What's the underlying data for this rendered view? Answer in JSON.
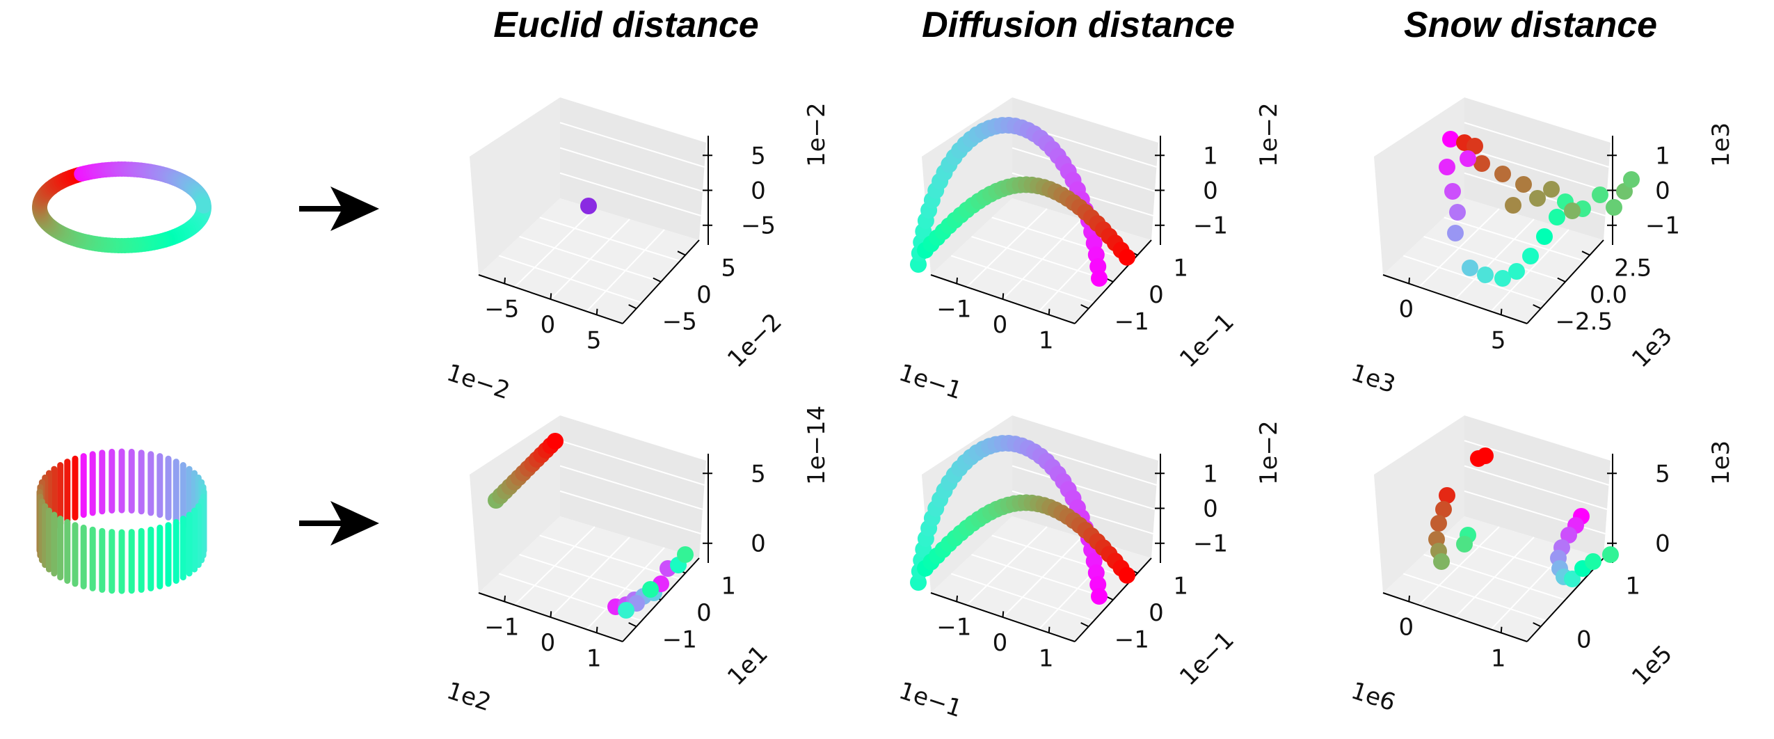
{
  "titles": [
    "Euclid distance",
    "Diffusion distance",
    "Snow distance"
  ],
  "colors": {
    "pane_top": "#f0f0f0",
    "pane_right": "#e8e8e8",
    "pane_left": "#ebebeb",
    "axis": "#000000",
    "grid": "#ffffff",
    "arrow": "#000000"
  },
  "colormap": "rainbow",
  "inputs": [
    {
      "shape": "ring",
      "description_icon": "rainbow-ring-icon"
    },
    {
      "shape": "bars-ring",
      "description_icon": "rainbow-bar-ring-icon"
    }
  ],
  "chart_data": [
    {
      "type": "scatter3d",
      "row": 0,
      "col": 0,
      "title": "Euclid distance",
      "points": "single",
      "point_color": "#8a2be2",
      "x_ticks": [
        "−5",
        "0",
        "5"
      ],
      "x_exponent": "1e−2",
      "y_ticks": [
        "−5",
        "0",
        "5"
      ],
      "y_exponent": "1e−2",
      "z_ticks": [
        "−5",
        "0",
        "5"
      ],
      "z_exponent": "1e−2",
      "xlim": [
        -0.07,
        0.07
      ],
      "ylim": [
        -0.07,
        0.07
      ],
      "zlim": [
        -0.07,
        0.07
      ]
    },
    {
      "type": "scatter3d",
      "row": 0,
      "col": 1,
      "title": "Diffusion distance",
      "points": "arch",
      "x_ticks": [
        "−1",
        "0",
        "1"
      ],
      "x_exponent": "1e−1",
      "y_ticks": [
        "−1",
        "0",
        "1"
      ],
      "y_exponent": "1e−1",
      "z_ticks": [
        "−1",
        "0",
        "1"
      ],
      "z_exponent": "1e−2",
      "xlim": [
        -0.15,
        0.15
      ],
      "ylim": [
        -0.15,
        0.15
      ],
      "zlim": [
        -0.015,
        0.015
      ]
    },
    {
      "type": "scatter3d",
      "row": 0,
      "col": 2,
      "title": "Snow distance",
      "points": "snow_top",
      "x_ticks": [
        "0",
        "5"
      ],
      "x_exponent": "1e3",
      "y_ticks": [
        "−2.5",
        "0.0",
        "2.5"
      ],
      "y_exponent": "1e3",
      "z_ticks": [
        "−1",
        "0",
        "1"
      ],
      "z_exponent": "1e3",
      "xlim": [
        -3000,
        7000
      ],
      "ylim": [
        -3500,
        3500
      ],
      "zlim": [
        -1500,
        1500
      ]
    },
    {
      "type": "scatter3d",
      "row": 1,
      "col": 0,
      "title": "",
      "points": "two_lines",
      "x_ticks": [
        "−1",
        "0",
        "1"
      ],
      "x_exponent": "1e2",
      "y_ticks": [
        "−1",
        "0",
        "1"
      ],
      "y_exponent": "1e1",
      "z_ticks": [
        "0",
        "5"
      ],
      "z_exponent": "1e−14",
      "xlim": [
        -150,
        150
      ],
      "ylim": [
        -15,
        15
      ],
      "zlim": [
        -2e-14,
        8e-14
      ]
    },
    {
      "type": "scatter3d",
      "row": 1,
      "col": 1,
      "title": "",
      "points": "arch",
      "x_ticks": [
        "−1",
        "0",
        "1"
      ],
      "x_exponent": "1e−1",
      "y_ticks": [
        "−1",
        "0",
        "1"
      ],
      "y_exponent": "1e−1",
      "z_ticks": [
        "−1",
        "0",
        "1"
      ],
      "z_exponent": "1e−2",
      "xlim": [
        -0.15,
        0.15
      ],
      "ylim": [
        -0.15,
        0.15
      ],
      "zlim": [
        -0.015,
        0.015
      ]
    },
    {
      "type": "scatter3d",
      "row": 1,
      "col": 2,
      "title": "",
      "points": "snow_bottom",
      "x_ticks": [
        "0",
        "1"
      ],
      "x_exponent": "1e6",
      "y_ticks": [
        "0",
        "1"
      ],
      "y_exponent": "1e5",
      "z_ticks": [
        "0",
        "5"
      ],
      "z_exponent": "1e3",
      "xlim": [
        -1000000,
        1500000
      ],
      "ylim": [
        -50000,
        150000
      ],
      "zlim": [
        -3000,
        7000
      ]
    }
  ]
}
